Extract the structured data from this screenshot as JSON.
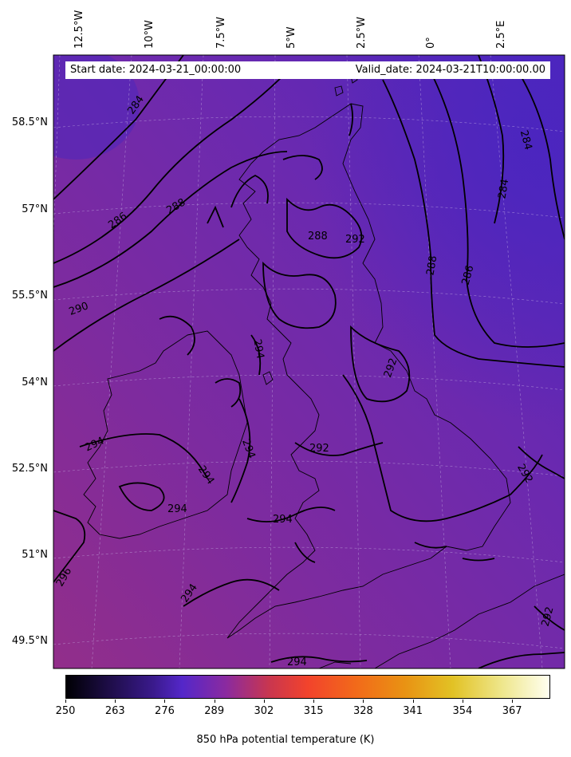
{
  "map": {
    "start_date_label": "Start date: 2024-03-21_00:00:00",
    "valid_date_label": "Valid_date: 2024-03-21T10:00:00.00",
    "field_colormap": "plasma-like (dark purple to pale yellow)",
    "background_colors": {
      "cool": "#5a2ab8",
      "mid": "#7a2aa6",
      "warm": "#8f2d8e"
    },
    "longitude_labels": [
      "12.5°W",
      "10°W",
      "7.5°W",
      "5°W",
      "2.5°W",
      "0°",
      "2.5°E"
    ],
    "latitude_labels": [
      "58.5°N",
      "57°N",
      "55.5°N",
      "54°N",
      "52.5°N",
      "51°N",
      "49.5°N"
    ],
    "contour_labels": [
      "284",
      "286",
      "288",
      "290",
      "292",
      "294",
      "296"
    ]
  },
  "colorbar": {
    "ticks": [
      "250",
      "263",
      "276",
      "289",
      "302",
      "315",
      "328",
      "341",
      "354",
      "367"
    ],
    "range": [
      250,
      377
    ],
    "title": "850 hPa potential temperature (K)"
  }
}
